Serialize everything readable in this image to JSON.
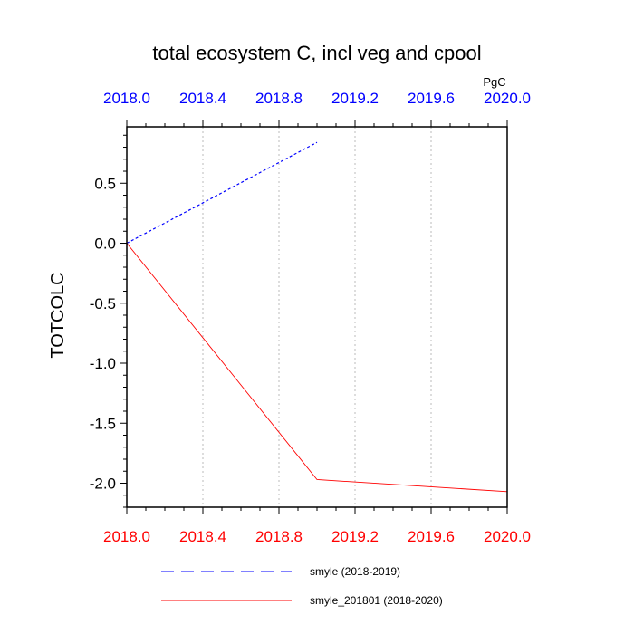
{
  "chart_data": {
    "type": "line",
    "title": "total ecosystem C, incl veg and cpool",
    "ylabel": "TOTCOLC",
    "units": "PgC",
    "xlim": [
      2018.0,
      2020.0
    ],
    "ylim": [
      -2.2,
      0.97
    ],
    "xticks": [
      2018.0,
      2018.4,
      2018.8,
      2019.2,
      2019.6,
      2020.0
    ],
    "xtick_labels": [
      "2018.0",
      "2018.4",
      "2018.8",
      "2019.2",
      "2019.6",
      "2020.0"
    ],
    "yticks": [
      0.5,
      0.0,
      -0.5,
      -1.0,
      -1.5,
      -2.0
    ],
    "ytick_labels": [
      "0.5",
      "0.0",
      "-0.5",
      "-1.0",
      "-1.5",
      "-2.0"
    ],
    "top_axis_color": "#0000ff",
    "bottom_axis_color": "#ff0000",
    "grid": "vertical dotted at x ticks",
    "legend_position": "bottom",
    "series": [
      {
        "name": "smyle (2018-2019)",
        "color": "#0000ff",
        "style": "dashed",
        "x": [
          2018.0,
          2019.0
        ],
        "y": [
          0.0,
          0.84
        ]
      },
      {
        "name": "smyle_201801 (2018-2020)",
        "color": "#ff0000",
        "style": "solid",
        "x": [
          2018.0,
          2019.0,
          2020.0
        ],
        "y": [
          0.0,
          -1.97,
          -2.07
        ]
      }
    ]
  }
}
